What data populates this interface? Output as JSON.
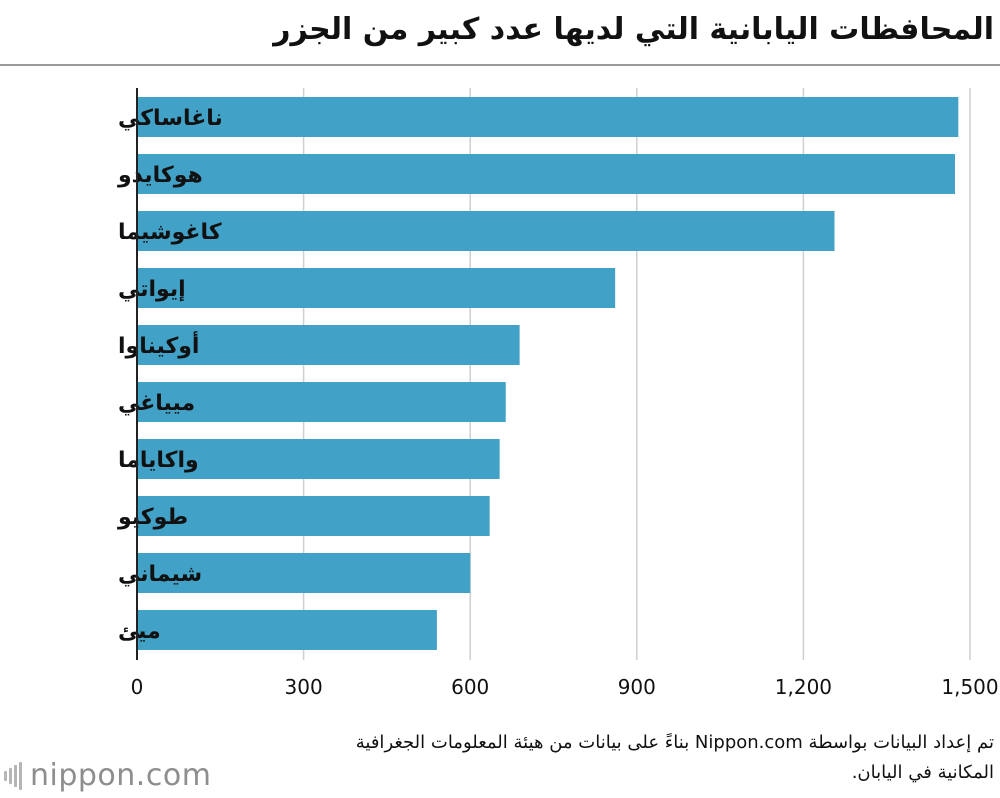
{
  "title": "المحافظات اليابانية التي لديها عدد كبير من الجزر",
  "source_note": "تم إعداد البيانات بواسطة Nippon.com بناءً على بيانات من هيئة المعلومات الجغرافية المكانية في اليابان.",
  "logo": {
    "text": "nippon.com"
  },
  "colors": {
    "bar": "#41a1c6",
    "grid": "#cfcfcf",
    "axis": "#222222",
    "rule": "#9a9a9a"
  },
  "chart_data": {
    "type": "bar",
    "orientation": "horizontal",
    "categories": [
      "ناغاساكي",
      "هوكايدو",
      "كاغوشيما",
      "إيواتي",
      "أوكيناوا",
      "ميياغي",
      "واكاياما",
      "طوكيو",
      "شيماني",
      "ميئ"
    ],
    "values": [
      1479,
      1473,
      1256,
      861,
      689,
      664,
      653,
      635,
      600,
      540
    ],
    "xlim": [
      0,
      1500
    ],
    "xticks": [
      0,
      300,
      600,
      900,
      1200,
      1500
    ],
    "xtick_labels": [
      "0",
      "300",
      "600",
      "900",
      "1,200",
      "1,500"
    ],
    "grid": true,
    "legend": "none"
  }
}
